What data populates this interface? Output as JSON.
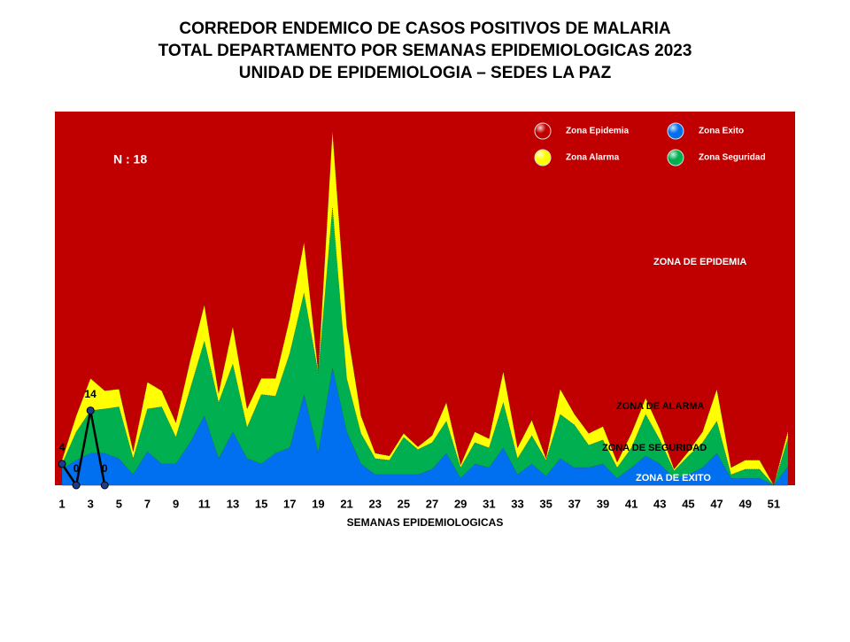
{
  "chart_data": {
    "type": "corridor",
    "title_lines": [
      "CORREDOR ENDEMICO DE CASOS POSITIVOS DE MALARIA",
      "TOTAL DEPARTAMENTO POR SEMANAS EPIDEMIOLOGICAS 2023",
      "UNIDAD DE EPIDEMIOLOGIA – SEDES LA PAZ"
    ],
    "x_label": "SEMANAS EPIDEMIOLOGICAS",
    "annotation_n": "N : 18",
    "zone_labels": [
      "ZONA DE EPIDEMIA",
      "ZONA DE ALARMA",
      "ZONA DE  SEGURIDAD",
      "ZONA DE  EXITO"
    ],
    "background": {
      "name": "Zona Epidemia",
      "color": "#c00000"
    },
    "x": [
      1,
      2,
      3,
      4,
      5,
      6,
      7,
      8,
      9,
      10,
      11,
      12,
      13,
      14,
      15,
      16,
      17,
      18,
      19,
      20,
      21,
      22,
      23,
      24,
      25,
      26,
      27,
      28,
      29,
      30,
      31,
      32,
      33,
      34,
      35,
      36,
      37,
      38,
      39,
      40,
      41,
      42,
      43,
      44,
      45,
      46,
      47,
      48,
      49,
      50,
      51,
      52
    ],
    "xlim": [
      0.5,
      52.5
    ],
    "xticks": [
      1,
      3,
      5,
      7,
      9,
      11,
      13,
      15,
      17,
      19,
      21,
      23,
      25,
      27,
      29,
      31,
      33,
      35,
      37,
      39,
      41,
      43,
      45,
      47,
      49,
      51
    ],
    "ylim": [
      0,
      70
    ],
    "series": [
      {
        "name": "Zona Alarma",
        "color": "#ffff00",
        "values": [
          4.7,
          13,
          20,
          17.7,
          18,
          6.3,
          19.3,
          17.7,
          11.7,
          23.3,
          33.8,
          17.2,
          29.7,
          14.3,
          20,
          20,
          31.3,
          45.5,
          21.3,
          66.3,
          29.7,
          13,
          6,
          5.5,
          9.7,
          7.2,
          9.3,
          15.5,
          3.8,
          10,
          8.7,
          21.3,
          7,
          12.2,
          5,
          18,
          13.3,
          9.7,
          11,
          4.3,
          9.7,
          16.3,
          10.5,
          3,
          6.3,
          10,
          18,
          3.3,
          4.7,
          4.7,
          0,
          10.2
        ]
      },
      {
        "name": "Zona Seguridad",
        "color": "#00b050",
        "values": [
          4,
          10,
          14,
          14.3,
          14.7,
          5,
          14.3,
          14.7,
          9,
          18,
          27,
          15.5,
          22.7,
          10.8,
          17,
          16.7,
          24.7,
          36,
          21,
          52,
          20,
          9.7,
          5,
          4.7,
          9,
          6.7,
          8,
          12,
          3.3,
          8,
          7,
          15.5,
          5,
          9.3,
          4.7,
          13.3,
          11.3,
          7.5,
          8.5,
          3.3,
          7,
          13.3,
          8.5,
          2.7,
          5.5,
          8,
          12,
          2,
          3,
          3,
          0,
          8.8
        ]
      },
      {
        "name": "Zona Exito",
        "color": "#0070f0",
        "values": [
          3,
          4.7,
          6,
          6,
          5,
          2,
          6.3,
          4,
          4,
          8,
          13,
          5,
          10,
          5,
          4,
          6,
          7,
          17,
          6,
          22,
          10,
          4,
          2,
          2,
          2,
          2,
          3,
          6,
          1.3,
          4,
          3.3,
          7,
          2,
          4,
          1.7,
          5,
          3.3,
          3.3,
          4,
          1.3,
          3.3,
          5.5,
          4,
          1.3,
          2,
          3.3,
          6,
          1.3,
          1.3,
          1.3,
          0,
          3.5
        ]
      }
    ],
    "observed": {
      "color": "#000000",
      "values": [
        4,
        0,
        14,
        0
      ]
    },
    "legend_order": [
      "background",
      0,
      2,
      1
    ]
  }
}
